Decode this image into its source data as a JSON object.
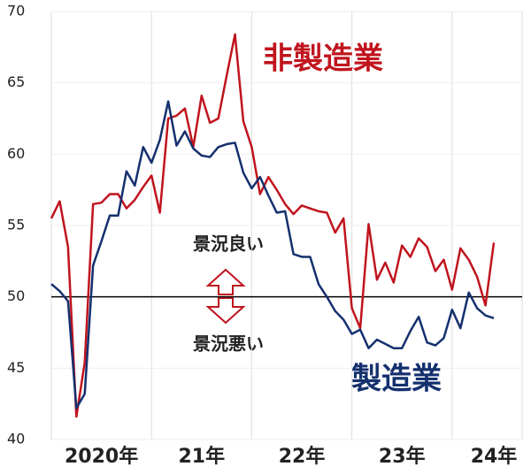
{
  "chart_data": {
    "type": "line",
    "categories": [
      null,
      null,
      null,
      null,
      null,
      null,
      "2020年",
      null,
      null,
      null,
      null,
      null,
      null,
      null,
      null,
      null,
      null,
      null,
      "21年",
      null,
      null,
      null,
      null,
      null,
      null,
      null,
      null,
      null,
      null,
      null,
      "22年",
      null,
      null,
      null,
      null,
      null,
      null,
      null,
      null,
      null,
      null,
      null,
      "23年",
      null,
      null,
      null,
      null,
      null,
      null,
      null,
      null,
      null,
      null,
      "24年"
    ],
    "series": [
      {
        "name": "非製造業",
        "color": "#c0141e",
        "values": [
          55.5,
          56.7,
          53.5,
          41.6,
          45.4,
          56.5,
          56.6,
          57.2,
          57.2,
          56.2,
          56.8,
          57.7,
          58.5,
          55.9,
          62.5,
          62.7,
          63.2,
          60.5,
          64.1,
          62.2,
          62.5,
          65.5,
          68.4,
          62.3,
          60.5,
          57.2,
          58.4,
          57.5,
          56.5,
          55.8,
          56.4,
          56.2,
          56.0,
          55.9,
          54.5,
          55.5,
          49.2,
          47.8,
          55.1,
          51.2,
          52.4,
          51.0,
          53.6,
          52.8,
          54.1,
          53.5,
          51.8,
          52.6,
          50.5,
          53.4,
          52.6,
          51.4,
          49.4,
          53.8
        ]
      },
      {
        "name": "製造業",
        "color": "#14306e",
        "values": [
          50.9,
          50.4,
          49.7,
          42.2,
          43.2,
          52.2,
          53.9,
          55.7,
          55.7,
          58.8,
          57.8,
          60.5,
          59.4,
          61.0,
          63.7,
          60.6,
          61.6,
          60.4,
          59.9,
          59.8,
          60.5,
          60.7,
          60.8,
          58.7,
          57.6,
          58.4,
          57.1,
          55.9,
          56.0,
          53.0,
          52.8,
          52.8,
          50.9,
          50.0,
          49.0,
          48.4,
          47.4,
          47.7,
          46.4,
          47.0,
          46.7,
          46.4,
          46.4,
          47.6,
          48.6,
          46.8,
          46.6,
          47.1,
          49.1,
          47.8,
          50.3,
          49.2,
          48.7,
          48.5
        ]
      }
    ],
    "ylim": [
      40,
      70
    ],
    "yticks": [
      40,
      45,
      50,
      55,
      60,
      65,
      70
    ],
    "reference_line": 50,
    "annotations": [
      "景況良い",
      "景況悪い"
    ]
  }
}
